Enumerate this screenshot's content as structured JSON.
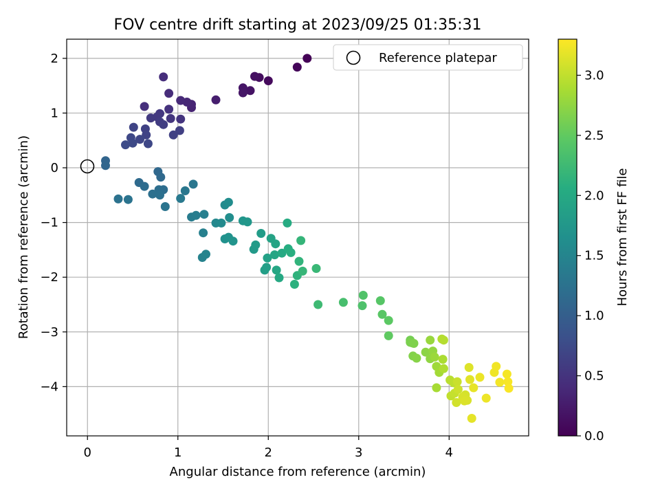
{
  "chart_data": {
    "type": "scatter",
    "title": "FOV centre drift starting at 2023/09/25 01:35:31",
    "xlabel": "Angular distance from reference (arcmin)",
    "ylabel": "Rotation from reference (arcmin)",
    "xlim": [
      -0.23,
      4.88
    ],
    "ylim": [
      -4.9,
      2.35
    ],
    "xticks": [
      0,
      1,
      2,
      3,
      4
    ],
    "yticks": [
      2,
      1,
      0,
      -1,
      -2,
      -3,
      -4
    ],
    "xtick_labels": [
      "0",
      "1",
      "2",
      "3",
      "4"
    ],
    "ytick_labels": [
      "2",
      "1",
      "0",
      "−1",
      "−2",
      "−3",
      "−4"
    ],
    "grid": true,
    "colormap": "viridis",
    "colorbar": {
      "label": "Hours from first FF file",
      "range": [
        0.0,
        3.3
      ],
      "ticks": [
        0.0,
        0.5,
        1.0,
        1.5,
        2.0,
        2.5,
        3.0
      ],
      "tick_labels": [
        "0.0",
        "0.5",
        "1.0",
        "1.5",
        "2.0",
        "2.5",
        "3.0"
      ]
    },
    "legend": {
      "placement": "top-right",
      "entries": [
        "Reference platepar"
      ]
    },
    "reference": {
      "x": 0.0,
      "y": 0.0
    },
    "points": [
      [
        2.43,
        2.0,
        0.02
      ],
      [
        2.32,
        1.84,
        0.05
      ],
      [
        2.0,
        1.59,
        0.09
      ],
      [
        1.9,
        1.65,
        0.12
      ],
      [
        1.85,
        1.67,
        0.14
      ],
      [
        1.8,
        1.41,
        0.17
      ],
      [
        1.72,
        1.46,
        0.19
      ],
      [
        1.72,
        1.37,
        0.21
      ],
      [
        1.42,
        1.24,
        0.28
      ],
      [
        1.15,
        1.1,
        0.33
      ],
      [
        1.15,
        1.16,
        0.35
      ],
      [
        1.1,
        1.2,
        0.37
      ],
      [
        1.03,
        1.23,
        0.39
      ],
      [
        0.9,
        1.36,
        0.42
      ],
      [
        0.84,
        1.66,
        0.44
      ],
      [
        0.63,
        1.12,
        0.46
      ],
      [
        0.9,
        1.07,
        0.48
      ],
      [
        1.03,
        0.89,
        0.5
      ],
      [
        0.92,
        0.9,
        0.52
      ],
      [
        0.8,
        0.99,
        0.54
      ],
      [
        0.77,
        0.93,
        0.56
      ],
      [
        0.7,
        0.91,
        0.57
      ],
      [
        0.8,
        0.84,
        0.59
      ],
      [
        0.84,
        0.79,
        0.61
      ],
      [
        1.02,
        0.68,
        0.63
      ],
      [
        0.95,
        0.6,
        0.64
      ],
      [
        0.64,
        0.71,
        0.65
      ],
      [
        0.65,
        0.6,
        0.67
      ],
      [
        0.51,
        0.74,
        0.68
      ],
      [
        0.58,
        0.52,
        0.7
      ],
      [
        0.67,
        0.44,
        0.71
      ],
      [
        0.48,
        0.55,
        0.72
      ],
      [
        0.5,
        0.45,
        0.74
      ],
      [
        0.42,
        0.42,
        0.76
      ],
      [
        0.2,
        0.13,
        1.08
      ],
      [
        0.2,
        0.04,
        1.1
      ],
      [
        0.78,
        -0.07,
        1.12
      ],
      [
        0.81,
        -0.17,
        1.13
      ],
      [
        0.57,
        -0.27,
        1.15
      ],
      [
        0.63,
        -0.34,
        1.17
      ],
      [
        0.84,
        -0.4,
        1.19
      ],
      [
        0.79,
        -0.4,
        1.2
      ],
      [
        0.72,
        -0.48,
        1.22
      ],
      [
        0.8,
        -0.5,
        1.23
      ],
      [
        0.34,
        -0.57,
        1.25
      ],
      [
        0.45,
        -0.58,
        1.26
      ],
      [
        0.86,
        -0.71,
        1.28
      ],
      [
        1.17,
        -0.3,
        1.3
      ],
      [
        1.08,
        -0.42,
        1.32
      ],
      [
        1.03,
        -0.56,
        1.34
      ],
      [
        1.15,
        -0.9,
        1.38
      ],
      [
        1.2,
        -0.87,
        1.4
      ],
      [
        1.29,
        -0.85,
        1.42
      ],
      [
        1.28,
        -1.19,
        1.44
      ],
      [
        1.27,
        -1.64,
        1.47
      ],
      [
        1.31,
        -1.58,
        1.49
      ],
      [
        1.42,
        -1.01,
        1.55
      ],
      [
        1.48,
        -1.01,
        1.57
      ],
      [
        1.52,
        -0.68,
        1.59
      ],
      [
        1.56,
        -0.63,
        1.61
      ],
      [
        1.57,
        -0.91,
        1.63
      ],
      [
        1.52,
        -1.3,
        1.66
      ],
      [
        1.56,
        -1.27,
        1.68
      ],
      [
        1.61,
        -1.34,
        1.7
      ],
      [
        1.72,
        -0.97,
        1.73
      ],
      [
        1.77,
        -0.99,
        1.75
      ],
      [
        1.84,
        -1.49,
        1.78
      ],
      [
        1.86,
        -1.41,
        1.8
      ],
      [
        1.92,
        -1.2,
        1.82
      ],
      [
        1.96,
        -1.87,
        1.85
      ],
      [
        1.98,
        -1.82,
        1.87
      ],
      [
        1.99,
        -1.65,
        1.89
      ],
      [
        2.03,
        -1.29,
        1.91
      ],
      [
        2.08,
        -1.39,
        1.93
      ],
      [
        2.07,
        -1.59,
        1.95
      ],
      [
        2.09,
        -1.87,
        1.97
      ],
      [
        2.12,
        -2.01,
        1.99
      ],
      [
        2.15,
        -1.56,
        2.01
      ],
      [
        2.21,
        -1.01,
        2.04
      ],
      [
        2.22,
        -1.48,
        2.06
      ],
      [
        2.25,
        -1.55,
        2.08
      ],
      [
        2.29,
        -2.13,
        2.11
      ],
      [
        2.32,
        -1.97,
        2.13
      ],
      [
        2.34,
        -1.71,
        2.15
      ],
      [
        2.36,
        -1.33,
        2.17
      ],
      [
        2.38,
        -1.89,
        2.19
      ],
      [
        2.53,
        -1.84,
        2.21
      ],
      [
        2.55,
        -2.5,
        2.25
      ],
      [
        2.83,
        -2.46,
        2.32
      ],
      [
        3.04,
        -2.52,
        2.37
      ],
      [
        3.05,
        -2.33,
        2.39
      ],
      [
        3.24,
        -2.43,
        2.43
      ],
      [
        3.26,
        -2.68,
        2.45
      ],
      [
        3.33,
        -2.79,
        2.47
      ],
      [
        3.33,
        -3.07,
        2.49
      ],
      [
        3.57,
        -3.15,
        2.6
      ],
      [
        3.59,
        -3.2,
        2.62
      ],
      [
        3.57,
        -3.19,
        2.64
      ],
      [
        3.61,
        -3.21,
        2.66
      ],
      [
        3.6,
        -3.44,
        2.68
      ],
      [
        3.64,
        -3.48,
        2.7
      ],
      [
        3.74,
        -3.37,
        2.73
      ],
      [
        3.79,
        -3.49,
        2.75
      ],
      [
        3.82,
        -3.35,
        2.77
      ],
      [
        3.79,
        -3.15,
        2.79
      ],
      [
        3.84,
        -3.46,
        2.81
      ],
      [
        3.86,
        -3.63,
        2.83
      ],
      [
        3.89,
        -3.74,
        2.85
      ],
      [
        3.86,
        -4.02,
        2.87
      ],
      [
        3.93,
        -3.5,
        2.89
      ],
      [
        3.94,
        -3.67,
        2.91
      ],
      [
        3.92,
        -3.13,
        2.93
      ],
      [
        3.94,
        -3.15,
        2.94
      ],
      [
        4.01,
        -3.88,
        2.96
      ],
      [
        4.05,
        -3.93,
        2.98
      ],
      [
        4.02,
        -4.17,
        3.0
      ],
      [
        4.06,
        -4.12,
        3.02
      ],
      [
        4.09,
        -3.91,
        3.04
      ],
      [
        4.1,
        -4.05,
        3.06
      ],
      [
        4.08,
        -4.29,
        3.08
      ],
      [
        4.18,
        -4.15,
        3.1
      ],
      [
        4.2,
        -4.25,
        3.12
      ],
      [
        4.22,
        -3.65,
        3.14
      ],
      [
        4.23,
        -3.87,
        3.16
      ],
      [
        4.25,
        -4.58,
        3.18
      ],
      [
        4.27,
        -4.02,
        3.19
      ],
      [
        4.34,
        -3.83,
        3.21
      ],
      [
        4.41,
        -4.21,
        3.22
      ],
      [
        4.5,
        -3.74,
        3.23
      ],
      [
        4.52,
        -3.63,
        3.24
      ],
      [
        4.56,
        -3.92,
        3.25
      ],
      [
        4.64,
        -3.77,
        3.26
      ],
      [
        4.65,
        -3.91,
        3.27
      ],
      [
        4.66,
        -4.03,
        3.28
      ],
      [
        4.15,
        -4.19,
        3.11
      ],
      [
        4.17,
        -4.26,
        3.13
      ]
    ]
  }
}
